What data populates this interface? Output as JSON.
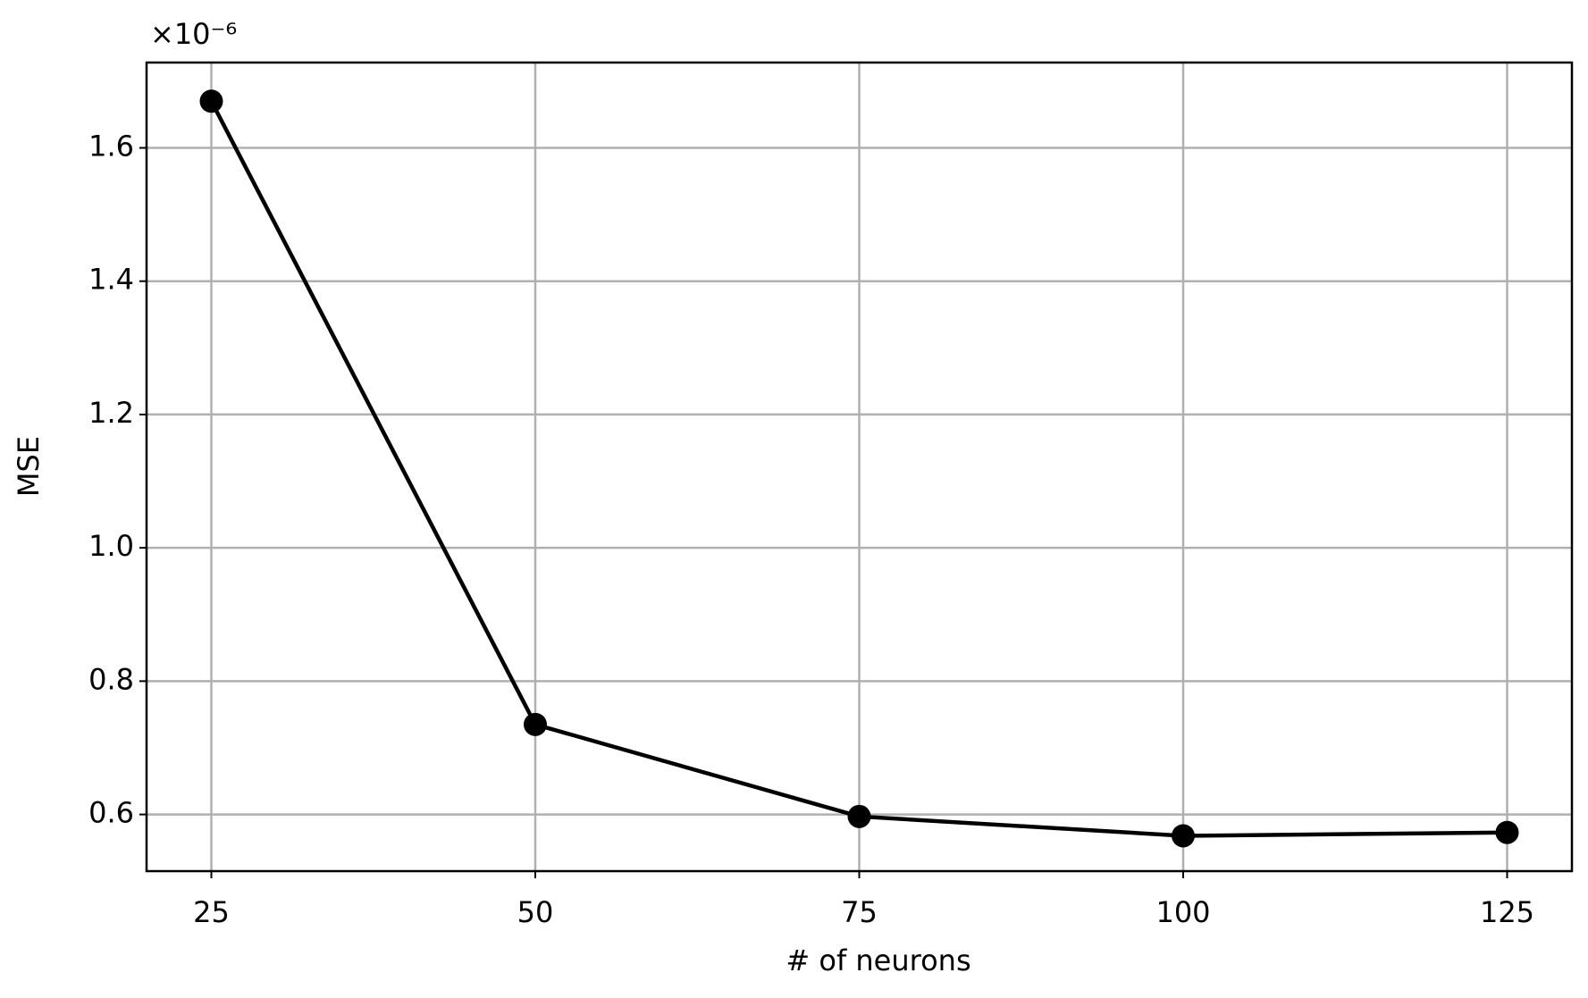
{
  "chart_data": {
    "type": "line",
    "x_label": "# of neurons",
    "y_label": "MSE",
    "y_offset_label": "×10⁻⁶",
    "x": [
      25,
      50,
      75,
      100,
      125
    ],
    "series": [
      {
        "color": "#000000",
        "values": [
          1.67,
          0.735,
          0.597,
          0.568,
          0.573
        ]
      }
    ],
    "xlim": [
      20,
      130
    ],
    "ylim": [
      0.515,
      1.728
    ],
    "xticks": [
      25,
      50,
      75,
      100,
      125
    ],
    "yticks": [
      0.6,
      0.8,
      {
        "value": 1,
        "label": "1.0"
      },
      1.2,
      1.4,
      1.6
    ],
    "grid": true
  }
}
